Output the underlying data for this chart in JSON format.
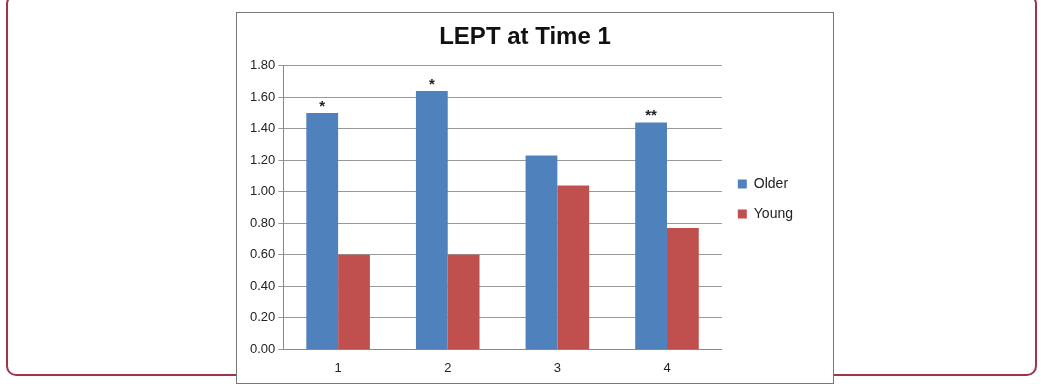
{
  "chart_data": {
    "type": "bar",
    "title": "LEPT at Time 1",
    "categories": [
      "1",
      "2",
      "3",
      "4"
    ],
    "series": [
      {
        "name": "Older",
        "color": "#4f81bd",
        "values": [
          1.5,
          1.64,
          1.23,
          1.44
        ]
      },
      {
        "name": "Young",
        "color": "#c0504d",
        "values": [
          0.6,
          0.6,
          1.04,
          0.77
        ]
      }
    ],
    "ylim": [
      0,
      1.8
    ],
    "yticks": [
      {
        "value": 0,
        "label": "0.00"
      },
      {
        "value": 0.2,
        "label": "0.20"
      },
      {
        "value": 0.4,
        "label": "0.40"
      },
      {
        "value": 0.6,
        "label": "0.60"
      },
      {
        "value": 0.8,
        "label": "0.80"
      },
      {
        "value": 1.0,
        "label": "1.00"
      },
      {
        "value": 1.2,
        "label": "1.20"
      },
      {
        "value": 1.4,
        "label": "1.40"
      },
      {
        "value": 1.6,
        "label": "1.60"
      },
      {
        "value": 1.8,
        "label": "1.80"
      }
    ],
    "grid": "y",
    "legend": "right",
    "annotations": [
      {
        "text": "*",
        "x": "1",
        "y": 1.5
      },
      {
        "text": "*",
        "x": "2",
        "y": 1.64
      },
      {
        "text": "**",
        "x": "4",
        "y": 1.44
      }
    ]
  }
}
